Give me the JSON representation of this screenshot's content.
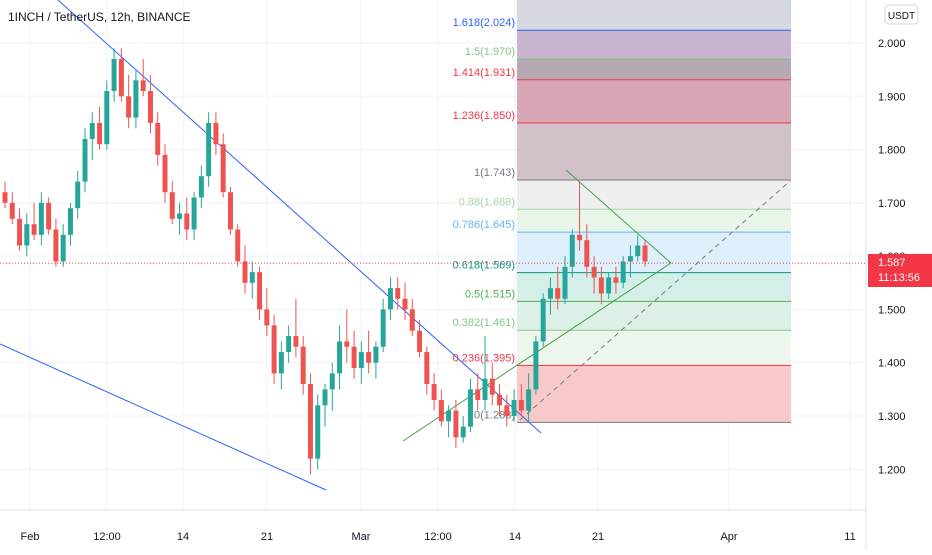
{
  "header": {
    "symbol_title": "1INCH / TetherUS, 12h, BINANCE",
    "currency_button": "USDT"
  },
  "price_tag": {
    "value": "1.587",
    "countdown": "11:13:56",
    "color": "#f23645"
  },
  "colors": {
    "up": "#26a69a",
    "down": "#ef5350",
    "trendline": "#2962ff",
    "triangle": "#4caf50"
  },
  "chart_data": {
    "type": "candlestick",
    "title": "1INCH / TetherUS, 12h, BINANCE",
    "yticks": [
      "1.200",
      "1.300",
      "1.400",
      "1.500",
      "1.600",
      "1.700",
      "1.800",
      "1.900",
      "2.000"
    ],
    "ylim": [
      1.15,
      2.05
    ],
    "xticks": [
      "Feb",
      "12:00",
      "14",
      "21",
      "Mar",
      "12:00",
      "14",
      "21",
      "Apr",
      "11"
    ],
    "current_price": 1.587,
    "candles_ohlc": [
      [
        1.72,
        1.74,
        1.69,
        1.7
      ],
      [
        1.7,
        1.72,
        1.66,
        1.67
      ],
      [
        1.67,
        1.69,
        1.61,
        1.62
      ],
      [
        1.62,
        1.68,
        1.6,
        1.66
      ],
      [
        1.66,
        1.7,
        1.63,
        1.64
      ],
      [
        1.64,
        1.72,
        1.62,
        1.7
      ],
      [
        1.7,
        1.71,
        1.64,
        1.65
      ],
      [
        1.65,
        1.67,
        1.58,
        1.59
      ],
      [
        1.59,
        1.66,
        1.58,
        1.64
      ],
      [
        1.64,
        1.7,
        1.62,
        1.69
      ],
      [
        1.69,
        1.76,
        1.67,
        1.74
      ],
      [
        1.74,
        1.84,
        1.72,
        1.82
      ],
      [
        1.82,
        1.87,
        1.78,
        1.85
      ],
      [
        1.85,
        1.88,
        1.8,
        1.81
      ],
      [
        1.81,
        1.93,
        1.8,
        1.91
      ],
      [
        1.91,
        1.99,
        1.89,
        1.97
      ],
      [
        1.97,
        1.99,
        1.89,
        1.9
      ],
      [
        1.9,
        1.94,
        1.84,
        1.86
      ],
      [
        1.86,
        1.95,
        1.84,
        1.93
      ],
      [
        1.93,
        1.97,
        1.9,
        1.91
      ],
      [
        1.91,
        1.94,
        1.83,
        1.85
      ],
      [
        1.85,
        1.87,
        1.77,
        1.79
      ],
      [
        1.79,
        1.81,
        1.7,
        1.72
      ],
      [
        1.72,
        1.74,
        1.66,
        1.67
      ],
      [
        1.67,
        1.7,
        1.64,
        1.68
      ],
      [
        1.68,
        1.71,
        1.63,
        1.65
      ],
      [
        1.65,
        1.72,
        1.63,
        1.71
      ],
      [
        1.71,
        1.77,
        1.69,
        1.75
      ],
      [
        1.75,
        1.87,
        1.73,
        1.85
      ],
      [
        1.85,
        1.87,
        1.79,
        1.81
      ],
      [
        1.81,
        1.83,
        1.71,
        1.72
      ],
      [
        1.72,
        1.73,
        1.64,
        1.65
      ],
      [
        1.65,
        1.66,
        1.58,
        1.59
      ],
      [
        1.59,
        1.62,
        1.53,
        1.55
      ],
      [
        1.55,
        1.59,
        1.52,
        1.57
      ],
      [
        1.57,
        1.58,
        1.48,
        1.5
      ],
      [
        1.5,
        1.54,
        1.45,
        1.47
      ],
      [
        1.47,
        1.49,
        1.36,
        1.38
      ],
      [
        1.38,
        1.44,
        1.35,
        1.42
      ],
      [
        1.42,
        1.47,
        1.4,
        1.45
      ],
      [
        1.45,
        1.52,
        1.41,
        1.43
      ],
      [
        1.43,
        1.45,
        1.34,
        1.36
      ],
      [
        1.36,
        1.38,
        1.19,
        1.22
      ],
      [
        1.22,
        1.34,
        1.2,
        1.32
      ],
      [
        1.32,
        1.36,
        1.28,
        1.35
      ],
      [
        1.35,
        1.4,
        1.31,
        1.38
      ],
      [
        1.38,
        1.47,
        1.35,
        1.44
      ],
      [
        1.44,
        1.5,
        1.4,
        1.43
      ],
      [
        1.43,
        1.46,
        1.37,
        1.39
      ],
      [
        1.39,
        1.44,
        1.36,
        1.42
      ],
      [
        1.42,
        1.46,
        1.38,
        1.4
      ],
      [
        1.4,
        1.44,
        1.37,
        1.43
      ],
      [
        1.43,
        1.52,
        1.42,
        1.5
      ],
      [
        1.5,
        1.56,
        1.48,
        1.54
      ],
      [
        1.54,
        1.56,
        1.5,
        1.52
      ],
      [
        1.52,
        1.55,
        1.48,
        1.5
      ],
      [
        1.5,
        1.52,
        1.45,
        1.46
      ],
      [
        1.46,
        1.48,
        1.41,
        1.42
      ],
      [
        1.42,
        1.43,
        1.34,
        1.36
      ],
      [
        1.36,
        1.38,
        1.31,
        1.33
      ],
      [
        1.33,
        1.35,
        1.28,
        1.29
      ],
      [
        1.29,
        1.32,
        1.26,
        1.31
      ],
      [
        1.31,
        1.33,
        1.24,
        1.26
      ],
      [
        1.26,
        1.3,
        1.25,
        1.28
      ],
      [
        1.28,
        1.37,
        1.27,
        1.35
      ],
      [
        1.35,
        1.38,
        1.31,
        1.33
      ],
      [
        1.33,
        1.45,
        1.31,
        1.37
      ],
      [
        1.37,
        1.4,
        1.32,
        1.34
      ],
      [
        1.34,
        1.36,
        1.3,
        1.32
      ],
      [
        1.32,
        1.34,
        1.28,
        1.3
      ],
      [
        1.3,
        1.35,
        1.29,
        1.33
      ],
      [
        1.33,
        1.36,
        1.3,
        1.31
      ],
      [
        1.31,
        1.38,
        1.29,
        1.35
      ],
      [
        1.35,
        1.45,
        1.34,
        1.44
      ],
      [
        1.44,
        1.53,
        1.43,
        1.52
      ],
      [
        1.52,
        1.56,
        1.49,
        1.54
      ],
      [
        1.54,
        1.58,
        1.5,
        1.52
      ],
      [
        1.52,
        1.6,
        1.51,
        1.58
      ],
      [
        1.58,
        1.65,
        1.56,
        1.64
      ],
      [
        1.64,
        1.74,
        1.61,
        1.63
      ],
      [
        1.63,
        1.66,
        1.56,
        1.58
      ],
      [
        1.58,
        1.6,
        1.53,
        1.56
      ],
      [
        1.56,
        1.58,
        1.51,
        1.53
      ],
      [
        1.53,
        1.57,
        1.52,
        1.56
      ],
      [
        1.56,
        1.58,
        1.53,
        1.55
      ],
      [
        1.55,
        1.6,
        1.54,
        1.59
      ],
      [
        1.59,
        1.62,
        1.56,
        1.6
      ],
      [
        1.6,
        1.64,
        1.59,
        1.62
      ],
      [
        1.62,
        1.63,
        1.58,
        1.59
      ]
    ],
    "fib_levels": [
      {
        "label": "0(1.288)",
        "value": 1.288,
        "color": "#787b86"
      },
      {
        "label": "0.236(1.395)",
        "value": 1.395,
        "color": "#f23645"
      },
      {
        "label": "0.382(1.461)",
        "value": 1.461,
        "color": "#81c784"
      },
      {
        "label": "0.5(1.515)",
        "value": 1.515,
        "color": "#4caf50"
      },
      {
        "label": "0.618(1.569)",
        "value": 1.569,
        "color": "#089981"
      },
      {
        "label": "0.786(1.645)",
        "value": 1.645,
        "color": "#64b5f6"
      },
      {
        "label": "0.88(1.688)",
        "value": 1.688,
        "color": "#a5d6a7"
      },
      {
        "label": "1(1.743)",
        "value": 1.743,
        "color": "#787b86"
      },
      {
        "label": "1.236(1.850)",
        "value": 1.85,
        "color": "#f23645"
      },
      {
        "label": "1.414(1.931)",
        "value": 1.931,
        "color": "#f23645"
      },
      {
        "label": "1.5(1.970)",
        "value": 1.97,
        "color": "#81c784"
      },
      {
        "label": "1.618(2.024)",
        "value": 2.024,
        "color": "#2962ff"
      }
    ],
    "fib_fills": [
      "#f7c9c9",
      "#ecf6ec",
      "#ddf0e8",
      "#d4eee8",
      "#ddeffa",
      "#e8f5e9",
      "#efefef",
      "#d3c1ca",
      "#d8a6b4",
      "#b7a9b3",
      "#c8b4cf"
    ]
  }
}
